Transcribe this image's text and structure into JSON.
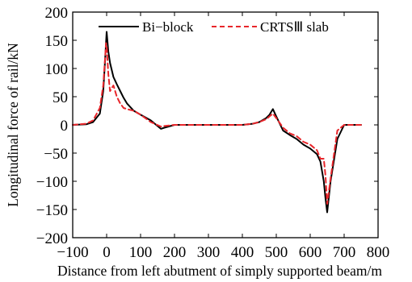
{
  "chart_data": {
    "type": "line",
    "xlabel": "Distance from left abutment of simply supported beam/m",
    "ylabel": "Longitudinal force of rail/kN",
    "xlim": [
      -100,
      800
    ],
    "ylim": [
      -200,
      200
    ],
    "xticks": [
      -100,
      0,
      100,
      200,
      300,
      400,
      500,
      600,
      700,
      800
    ],
    "yticks": [
      -200,
      -150,
      -100,
      -50,
      0,
      50,
      100,
      150,
      200
    ],
    "xtick_labels": [
      "−100",
      "0",
      "100",
      "200",
      "300",
      "400",
      "500",
      "600",
      "700",
      "800"
    ],
    "ytick_labels": [
      "−200",
      "−150",
      "−100",
      "−50",
      "0",
      "50",
      "100",
      "150",
      "200"
    ],
    "grid": false,
    "legend_position": "top",
    "series": [
      {
        "name": "Bi−block",
        "color": "#000000",
        "style": "solid",
        "x": [
          -100,
          -60,
          -40,
          -20,
          -10,
          -5,
          0,
          5,
          10,
          20,
          30,
          40,
          50,
          60,
          80,
          100,
          130,
          160,
          170,
          200,
          250,
          300,
          400,
          430,
          450,
          470,
          480,
          490,
          500,
          520,
          540,
          560,
          580,
          600,
          620,
          630,
          640,
          645,
          650,
          660,
          680,
          700,
          750
        ],
        "y": [
          0,
          1,
          5,
          20,
          60,
          110,
          165,
          130,
          110,
          85,
          72,
          60,
          48,
          38,
          25,
          18,
          8,
          -7,
          -5,
          0,
          0,
          0,
          0,
          2,
          5,
          12,
          18,
          28,
          15,
          -10,
          -18,
          -25,
          -35,
          -42,
          -52,
          -65,
          -100,
          -130,
          -155,
          -100,
          -25,
          0,
          0
        ]
      },
      {
        "name": "CRTSⅢ slab",
        "color": "#e8262b",
        "style": "dashed",
        "x": [
          -100,
          -60,
          -40,
          -20,
          -10,
          -5,
          -2,
          0,
          5,
          10,
          20,
          30,
          40,
          50,
          60,
          80,
          100,
          130,
          160,
          170,
          200,
          250,
          300,
          400,
          430,
          450,
          470,
          480,
          490,
          500,
          520,
          540,
          560,
          580,
          600,
          620,
          630,
          640,
          645,
          650,
          660,
          680,
          700,
          750
        ],
        "y": [
          0,
          2,
          8,
          30,
          70,
          115,
          145,
          140,
          90,
          60,
          70,
          50,
          38,
          30,
          28,
          25,
          18,
          5,
          -3,
          -2,
          0,
          0,
          0,
          0,
          2,
          5,
          10,
          15,
          20,
          12,
          -5,
          -15,
          -20,
          -30,
          -35,
          -45,
          -60,
          -60,
          -90,
          -140,
          -95,
          -10,
          0,
          0
        ]
      }
    ]
  }
}
